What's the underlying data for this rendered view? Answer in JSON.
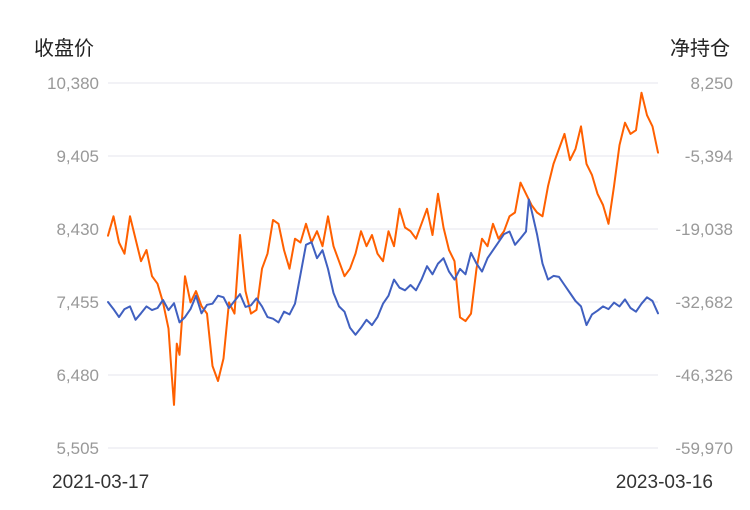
{
  "chart_data": {
    "type": "line",
    "left_axis": {
      "title": "收盘价",
      "ticks": [
        "10,380",
        "9,405",
        "8,430",
        "7,455",
        "6,480",
        "5,505"
      ],
      "range": [
        5505,
        10380
      ]
    },
    "right_axis": {
      "title": "净持仓",
      "ticks": [
        "8,250",
        "-5,394",
        "-19,038",
        "-32,682",
        "-46,326",
        "-59,970"
      ],
      "range": [
        -59970,
        8250
      ]
    },
    "x_axis": {
      "start_label": "2021-03-17",
      "end_label": "2023-03-16"
    },
    "grid": true,
    "series": [
      {
        "axis": "left",
        "color": "#ff6000",
        "points": [
          [
            0,
            8340
          ],
          [
            0.01,
            8600
          ],
          [
            0.02,
            8250
          ],
          [
            0.03,
            8100
          ],
          [
            0.04,
            8600
          ],
          [
            0.05,
            8300
          ],
          [
            0.06,
            8000
          ],
          [
            0.07,
            8150
          ],
          [
            0.08,
            7800
          ],
          [
            0.09,
            7700
          ],
          [
            0.1,
            7450
          ],
          [
            0.11,
            7100
          ],
          [
            0.115,
            6560
          ],
          [
            0.12,
            6080
          ],
          [
            0.125,
            6900
          ],
          [
            0.13,
            6750
          ],
          [
            0.14,
            7800
          ],
          [
            0.15,
            7450
          ],
          [
            0.16,
            7600
          ],
          [
            0.17,
            7400
          ],
          [
            0.18,
            7300
          ],
          [
            0.19,
            6600
          ],
          [
            0.2,
            6400
          ],
          [
            0.21,
            6700
          ],
          [
            0.22,
            7450
          ],
          [
            0.23,
            7300
          ],
          [
            0.24,
            8350
          ],
          [
            0.25,
            7600
          ],
          [
            0.26,
            7300
          ],
          [
            0.27,
            7350
          ],
          [
            0.28,
            7900
          ],
          [
            0.29,
            8100
          ],
          [
            0.3,
            8550
          ],
          [
            0.31,
            8500
          ],
          [
            0.32,
            8150
          ],
          [
            0.33,
            7900
          ],
          [
            0.34,
            8300
          ],
          [
            0.35,
            8250
          ],
          [
            0.36,
            8500
          ],
          [
            0.37,
            8250
          ],
          [
            0.38,
            8400
          ],
          [
            0.39,
            8200
          ],
          [
            0.4,
            8600
          ],
          [
            0.41,
            8200
          ],
          [
            0.42,
            8000
          ],
          [
            0.43,
            7800
          ],
          [
            0.44,
            7900
          ],
          [
            0.45,
            8100
          ],
          [
            0.46,
            8400
          ],
          [
            0.47,
            8200
          ],
          [
            0.48,
            8350
          ],
          [
            0.49,
            8100
          ],
          [
            0.5,
            8000
          ],
          [
            0.51,
            8400
          ],
          [
            0.52,
            8200
          ],
          [
            0.53,
            8700
          ],
          [
            0.54,
            8450
          ],
          [
            0.55,
            8400
          ],
          [
            0.56,
            8300
          ],
          [
            0.57,
            8500
          ],
          [
            0.58,
            8700
          ],
          [
            0.59,
            8350
          ],
          [
            0.6,
            8900
          ],
          [
            0.61,
            8450
          ],
          [
            0.62,
            8150
          ],
          [
            0.63,
            8000
          ],
          [
            0.64,
            7250
          ],
          [
            0.65,
            7200
          ],
          [
            0.66,
            7300
          ],
          [
            0.67,
            7900
          ],
          [
            0.68,
            8300
          ],
          [
            0.69,
            8200
          ],
          [
            0.7,
            8500
          ],
          [
            0.71,
            8300
          ],
          [
            0.72,
            8400
          ],
          [
            0.73,
            8600
          ],
          [
            0.74,
            8650
          ],
          [
            0.75,
            9050
          ],
          [
            0.76,
            8900
          ],
          [
            0.77,
            8750
          ],
          [
            0.78,
            8650
          ],
          [
            0.79,
            8600
          ],
          [
            0.8,
            9000
          ],
          [
            0.81,
            9300
          ],
          [
            0.82,
            9500
          ],
          [
            0.83,
            9700
          ],
          [
            0.84,
            9350
          ],
          [
            0.85,
            9500
          ],
          [
            0.86,
            9800
          ],
          [
            0.87,
            9300
          ],
          [
            0.88,
            9150
          ],
          [
            0.89,
            8900
          ],
          [
            0.9,
            8750
          ],
          [
            0.91,
            8500
          ],
          [
            0.92,
            9000
          ],
          [
            0.93,
            9550
          ],
          [
            0.94,
            9850
          ],
          [
            0.95,
            9700
          ],
          [
            0.96,
            9750
          ],
          [
            0.97,
            10250
          ],
          [
            0.98,
            9950
          ],
          [
            0.99,
            9800
          ],
          [
            1.0,
            9450
          ]
        ]
      },
      {
        "axis": "right",
        "color": "#4060c0",
        "points": [
          [
            0,
            -32682
          ],
          [
            0.01,
            -34000
          ],
          [
            0.02,
            -35500
          ],
          [
            0.03,
            -34000
          ],
          [
            0.04,
            -33500
          ],
          [
            0.05,
            -36000
          ],
          [
            0.06,
            -34800
          ],
          [
            0.07,
            -33500
          ],
          [
            0.08,
            -34200
          ],
          [
            0.09,
            -33800
          ],
          [
            0.1,
            -32300
          ],
          [
            0.11,
            -34200
          ],
          [
            0.12,
            -32900
          ],
          [
            0.13,
            -36500
          ],
          [
            0.14,
            -35500
          ],
          [
            0.15,
            -34000
          ],
          [
            0.16,
            -31500
          ],
          [
            0.17,
            -34800
          ],
          [
            0.18,
            -33200
          ],
          [
            0.19,
            -33000
          ],
          [
            0.2,
            -31500
          ],
          [
            0.21,
            -31800
          ],
          [
            0.22,
            -33800
          ],
          [
            0.23,
            -32500
          ],
          [
            0.24,
            -31200
          ],
          [
            0.25,
            -33600
          ],
          [
            0.26,
            -33300
          ],
          [
            0.27,
            -32000
          ],
          [
            0.28,
            -33500
          ],
          [
            0.29,
            -35500
          ],
          [
            0.3,
            -35800
          ],
          [
            0.31,
            -36500
          ],
          [
            0.32,
            -34500
          ],
          [
            0.33,
            -35000
          ],
          [
            0.34,
            -33000
          ],
          [
            0.35,
            -27500
          ],
          [
            0.36,
            -22000
          ],
          [
            0.37,
            -21500
          ],
          [
            0.38,
            -24500
          ],
          [
            0.39,
            -23000
          ],
          [
            0.4,
            -26500
          ],
          [
            0.41,
            -31000
          ],
          [
            0.42,
            -33500
          ],
          [
            0.43,
            -34500
          ],
          [
            0.44,
            -37500
          ],
          [
            0.45,
            -38800
          ],
          [
            0.46,
            -37500
          ],
          [
            0.47,
            -36000
          ],
          [
            0.48,
            -37000
          ],
          [
            0.49,
            -35500
          ],
          [
            0.5,
            -33000
          ],
          [
            0.51,
            -31500
          ],
          [
            0.52,
            -28500
          ],
          [
            0.53,
            -30000
          ],
          [
            0.54,
            -30500
          ],
          [
            0.55,
            -29500
          ],
          [
            0.56,
            -30500
          ],
          [
            0.57,
            -28500
          ],
          [
            0.58,
            -26000
          ],
          [
            0.59,
            -27500
          ],
          [
            0.6,
            -25500
          ],
          [
            0.61,
            -24500
          ],
          [
            0.62,
            -27000
          ],
          [
            0.63,
            -28500
          ],
          [
            0.64,
            -26500
          ],
          [
            0.65,
            -27500
          ],
          [
            0.66,
            -23500
          ],
          [
            0.67,
            -25500
          ],
          [
            0.68,
            -27000
          ],
          [
            0.69,
            -24500
          ],
          [
            0.7,
            -23000
          ],
          [
            0.71,
            -21500
          ],
          [
            0.72,
            -20000
          ],
          [
            0.73,
            -19500
          ],
          [
            0.74,
            -22000
          ],
          [
            0.75,
            -20800
          ],
          [
            0.76,
            -19500
          ],
          [
            0.765,
            -13500
          ],
          [
            0.77,
            -15500
          ],
          [
            0.78,
            -20000
          ],
          [
            0.79,
            -25500
          ],
          [
            0.8,
            -28500
          ],
          [
            0.81,
            -27800
          ],
          [
            0.82,
            -28000
          ],
          [
            0.83,
            -29500
          ],
          [
            0.84,
            -31000
          ],
          [
            0.85,
            -32500
          ],
          [
            0.86,
            -33500
          ],
          [
            0.87,
            -37000
          ],
          [
            0.88,
            -35000
          ],
          [
            0.89,
            -34300
          ],
          [
            0.9,
            -33500
          ],
          [
            0.91,
            -34000
          ],
          [
            0.92,
            -32800
          ],
          [
            0.93,
            -33500
          ],
          [
            0.94,
            -32200
          ],
          [
            0.95,
            -33800
          ],
          [
            0.96,
            -34500
          ],
          [
            0.97,
            -33000
          ],
          [
            0.98,
            -31800
          ],
          [
            0.99,
            -32500
          ],
          [
            1.0,
            -34800
          ]
        ]
      }
    ]
  }
}
